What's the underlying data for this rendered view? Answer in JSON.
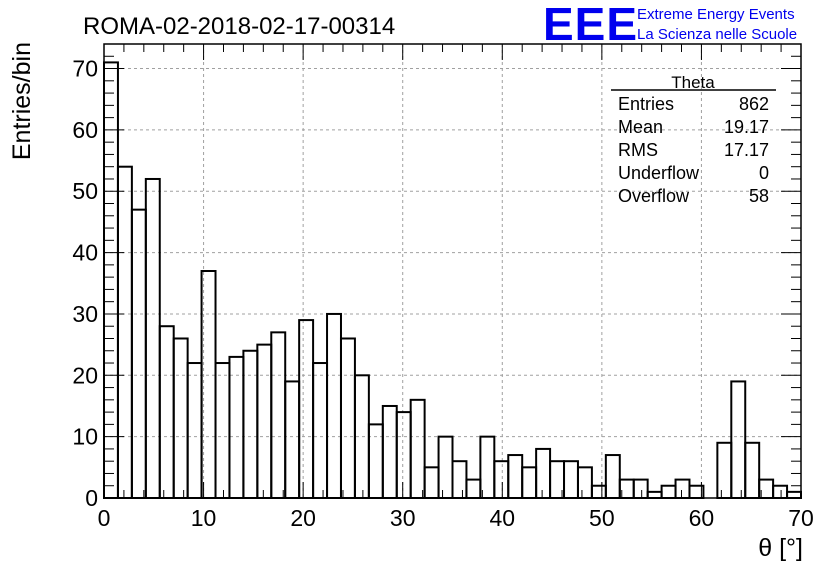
{
  "title": "ROMA-02-2018-02-17-00314",
  "logo": {
    "mark": "EEE",
    "line1": "Extreme Energy Events",
    "line2": "La Scienza nelle Scuole",
    "color": "#0000ee"
  },
  "stats_box": {
    "title": "Theta",
    "rows": [
      {
        "label": "Entries",
        "value": "862"
      },
      {
        "label": "Mean",
        "value": "19.17"
      },
      {
        "label": "RMS",
        "value": "17.17"
      },
      {
        "label": "Underflow",
        "value": "0"
      },
      {
        "label": "Overflow",
        "value": "58"
      }
    ]
  },
  "chart_data": {
    "type": "bar",
    "style": "step-histogram",
    "title": "ROMA-02-2018-02-17-00314",
    "xlabel": "θ [°]",
    "ylabel": "Entries/bin",
    "xlim": [
      0,
      70
    ],
    "ylim": [
      0,
      74
    ],
    "bin_width": 1.4,
    "grid": true,
    "x_ticks": [
      0,
      10,
      20,
      30,
      40,
      50,
      60,
      70
    ],
    "y_ticks": [
      0,
      10,
      20,
      30,
      40,
      50,
      60,
      70
    ],
    "x_tick_labels": [
      "0",
      "10",
      "20",
      "30",
      "40",
      "50",
      "60",
      "70"
    ],
    "y_tick_labels": [
      "0",
      "10",
      "20",
      "30",
      "40",
      "50",
      "60",
      "70"
    ],
    "values": [
      71,
      54,
      47,
      52,
      28,
      26,
      22,
      37,
      22,
      23,
      24,
      25,
      27,
      19,
      29,
      22,
      30,
      26,
      20,
      12,
      15,
      14,
      16,
      5,
      10,
      6,
      3,
      10,
      6,
      7,
      5,
      8,
      6,
      6,
      5,
      2,
      7,
      3,
      3,
      1,
      2,
      3,
      2,
      0,
      9,
      19,
      9,
      3,
      2,
      1
    ],
    "line_color": "#000000"
  }
}
